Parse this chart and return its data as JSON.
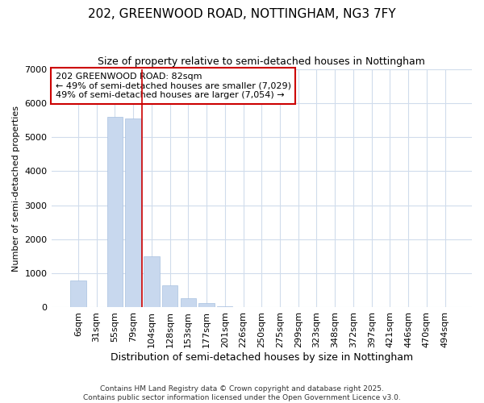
{
  "title": "202, GREENWOOD ROAD, NOTTINGHAM, NG3 7FY",
  "subtitle": "Size of property relative to semi-detached houses in Nottingham",
  "xlabel": "Distribution of semi-detached houses by size in Nottingham",
  "ylabel": "Number of semi-detached properties",
  "categories": [
    "6sqm",
    "31sqm",
    "55sqm",
    "79sqm",
    "104sqm",
    "128sqm",
    "153sqm",
    "177sqm",
    "201sqm",
    "226sqm",
    "250sqm",
    "275sqm",
    "299sqm",
    "323sqm",
    "348sqm",
    "372sqm",
    "397sqm",
    "421sqm",
    "446sqm",
    "470sqm",
    "494sqm"
  ],
  "values": [
    800,
    0,
    5600,
    5550,
    1500,
    650,
    280,
    120,
    30,
    0,
    0,
    0,
    0,
    0,
    0,
    0,
    0,
    0,
    0,
    0,
    0
  ],
  "bar_color": "#c8d8ee",
  "bar_edgecolor": "#a8c0e0",
  "vline_color": "#cc0000",
  "vline_x": 3.5,
  "annotation_text": "202 GREENWOOD ROAD: 82sqm\n← 49% of semi-detached houses are smaller (7,029)\n49% of semi-detached houses are larger (7,054) →",
  "annotation_box_edgecolor": "#cc0000",
  "background_color": "#ffffff",
  "grid_color": "#d0dcec",
  "footer": "Contains HM Land Registry data © Crown copyright and database right 2025.\nContains public sector information licensed under the Open Government Licence v3.0.",
  "ylim": [
    0,
    7000
  ],
  "yticks": [
    0,
    1000,
    2000,
    3000,
    4000,
    5000,
    6000,
    7000
  ],
  "title_fontsize": 11,
  "subtitle_fontsize": 9,
  "xlabel_fontsize": 9,
  "ylabel_fontsize": 8,
  "tick_fontsize": 8,
  "annotation_fontsize": 8,
  "footer_fontsize": 6.5
}
